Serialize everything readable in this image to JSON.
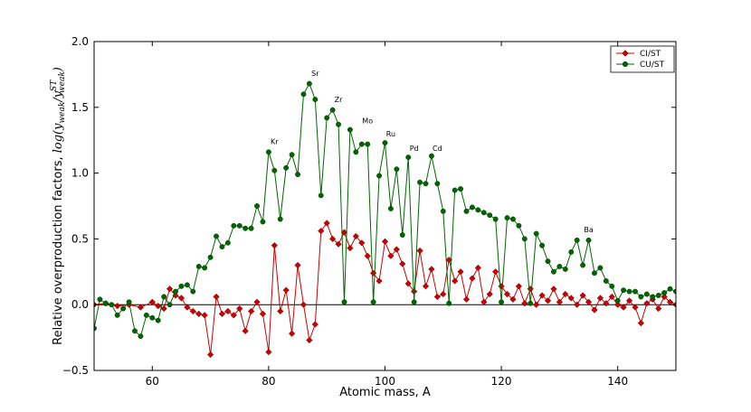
{
  "chart_data": {
    "type": "line",
    "title": "",
    "xlabel": "Atomic mass, A",
    "ylabel": "Relative overproduction factors, log(y_weak/y_weak^ST)",
    "ylabel_prefix": "Relative overproduction factors, ",
    "ylabel_math": "log(y",
    "ylabel_math_sub": "weak",
    "ylabel_math_mid": "/y",
    "ylabel_math_sup": "ST",
    "ylabel_math_sub2": "weak",
    "ylabel_math_end": ")",
    "xlim": [
      50,
      150
    ],
    "ylim": [
      -0.5,
      2.0
    ],
    "xticks": [
      60,
      80,
      100,
      120,
      140
    ],
    "yticks": [
      -0.5,
      0.0,
      0.5,
      1.0,
      1.5,
      2.0
    ],
    "xtick_labels": [
      "60",
      "80",
      "100",
      "120",
      "140"
    ],
    "ytick_labels": [
      "−0.5",
      "0.0",
      "0.5",
      "1.0",
      "1.5",
      "2.0"
    ],
    "reference_line_y": 0,
    "legend_position": "top-right",
    "series": [
      {
        "name": "CI/ST",
        "color": "#cc0000",
        "marker": "diamond",
        "x": [
          50,
          52,
          54,
          56,
          58,
          60,
          61,
          62,
          63,
          64,
          65,
          66,
          67,
          68,
          69,
          70,
          71,
          72,
          73,
          74,
          75,
          76,
          77,
          78,
          79,
          80,
          81,
          82,
          83,
          84,
          85,
          86,
          87,
          88,
          89,
          90,
          91,
          92,
          93,
          94,
          95,
          96,
          97,
          98,
          99,
          100,
          101,
          102,
          103,
          104,
          105,
          106,
          107,
          108,
          109,
          110,
          111,
          112,
          113,
          114,
          115,
          116,
          117,
          118,
          119,
          120,
          121,
          122,
          123,
          124,
          125,
          126,
          127,
          128,
          129,
          130,
          131,
          132,
          133,
          134,
          135,
          136,
          137,
          138,
          139,
          140,
          141,
          142,
          143,
          144,
          145,
          146,
          147,
          148,
          149,
          150
        ],
        "y": [
          0.0,
          0.01,
          -0.01,
          0.0,
          -0.02,
          0.02,
          -0.01,
          -0.03,
          0.12,
          0.07,
          0.05,
          -0.02,
          -0.05,
          -0.07,
          -0.08,
          -0.38,
          0.06,
          -0.07,
          -0.05,
          -0.08,
          -0.03,
          -0.2,
          -0.05,
          0.02,
          -0.07,
          -0.36,
          0.45,
          -0.05,
          0.11,
          -0.22,
          0.3,
          0.0,
          -0.27,
          -0.15,
          0.56,
          0.62,
          0.5,
          0.46,
          0.55,
          0.43,
          0.52,
          0.47,
          0.37,
          0.24,
          0.18,
          0.48,
          0.37,
          0.42,
          0.31,
          0.16,
          0.1,
          0.41,
          0.14,
          0.27,
          0.06,
          0.08,
          0.34,
          0.18,
          0.25,
          0.04,
          0.2,
          0.28,
          0.02,
          0.08,
          0.25,
          0.14,
          0.08,
          0.04,
          0.14,
          0.01,
          0.12,
          0.0,
          0.07,
          0.03,
          0.12,
          0.02,
          0.08,
          0.05,
          0.0,
          0.07,
          0.02,
          -0.04,
          0.05,
          0.01,
          0.06,
          0.0,
          -0.02,
          0.03,
          -0.02,
          -0.14,
          0.01,
          0.04,
          -0.03,
          0.06,
          0.02,
          0.0
        ]
      },
      {
        "name": "CU/ST",
        "color": "#006600",
        "marker": "circle",
        "x": [
          50,
          51,
          52,
          53,
          54,
          55,
          56,
          57,
          58,
          59,
          60,
          61,
          62,
          63,
          64,
          65,
          66,
          67,
          68,
          69,
          70,
          71,
          72,
          73,
          74,
          75,
          76,
          77,
          78,
          79,
          80,
          81,
          82,
          83,
          84,
          85,
          86,
          87,
          88,
          89,
          90,
          91,
          92,
          93,
          94,
          95,
          96,
          97,
          98,
          99,
          100,
          101,
          102,
          103,
          104,
          105,
          106,
          107,
          108,
          109,
          110,
          111,
          112,
          113,
          114,
          115,
          116,
          117,
          118,
          119,
          120,
          121,
          122,
          123,
          124,
          125,
          126,
          127,
          128,
          129,
          130,
          131,
          132,
          133,
          134,
          135,
          136,
          137,
          138,
          139,
          140,
          141,
          142,
          143,
          144,
          145,
          146,
          147,
          148,
          149,
          150
        ],
        "y": [
          -0.18,
          0.04,
          0.01,
          0.0,
          -0.08,
          -0.03,
          0.02,
          -0.2,
          -0.24,
          -0.08,
          -0.1,
          -0.12,
          0.06,
          0.0,
          0.1,
          0.14,
          0.15,
          0.1,
          0.29,
          0.28,
          0.36,
          0.52,
          0.44,
          0.47,
          0.6,
          0.6,
          0.58,
          0.58,
          0.75,
          0.63,
          1.16,
          1.02,
          0.65,
          1.04,
          1.14,
          0.99,
          1.6,
          1.68,
          1.56,
          0.83,
          1.42,
          1.48,
          1.37,
          0.02,
          1.33,
          1.16,
          1.22,
          1.22,
          0.02,
          0.98,
          1.23,
          0.73,
          1.03,
          0.53,
          1.12,
          0.02,
          0.93,
          0.92,
          1.13,
          0.92,
          0.71,
          0.01,
          0.87,
          0.88,
          0.71,
          0.74,
          0.72,
          0.7,
          0.68,
          0.65,
          0.02,
          0.66,
          0.65,
          0.6,
          0.5,
          0.01,
          0.54,
          0.45,
          0.33,
          0.25,
          0.29,
          0.27,
          0.4,
          0.49,
          0.3,
          0.49,
          0.24,
          0.28,
          0.18,
          0.14,
          0.03,
          0.11,
          0.1,
          0.1,
          0.06,
          0.08,
          0.06,
          0.07,
          0.09,
          0.12,
          0.1
        ]
      }
    ],
    "annotations": [
      {
        "text": "Kr",
        "x": 81,
        "y": 1.22
      },
      {
        "text": "Sr",
        "x": 88,
        "y": 1.74
      },
      {
        "text": "Zr",
        "x": 92,
        "y": 1.54
      },
      {
        "text": "Mo",
        "x": 97,
        "y": 1.38
      },
      {
        "text": "Ru",
        "x": 101,
        "y": 1.28
      },
      {
        "text": "Pd",
        "x": 105,
        "y": 1.17
      },
      {
        "text": "Cd",
        "x": 109,
        "y": 1.17
      },
      {
        "text": "Ba",
        "x": 135,
        "y": 0.55
      }
    ]
  }
}
